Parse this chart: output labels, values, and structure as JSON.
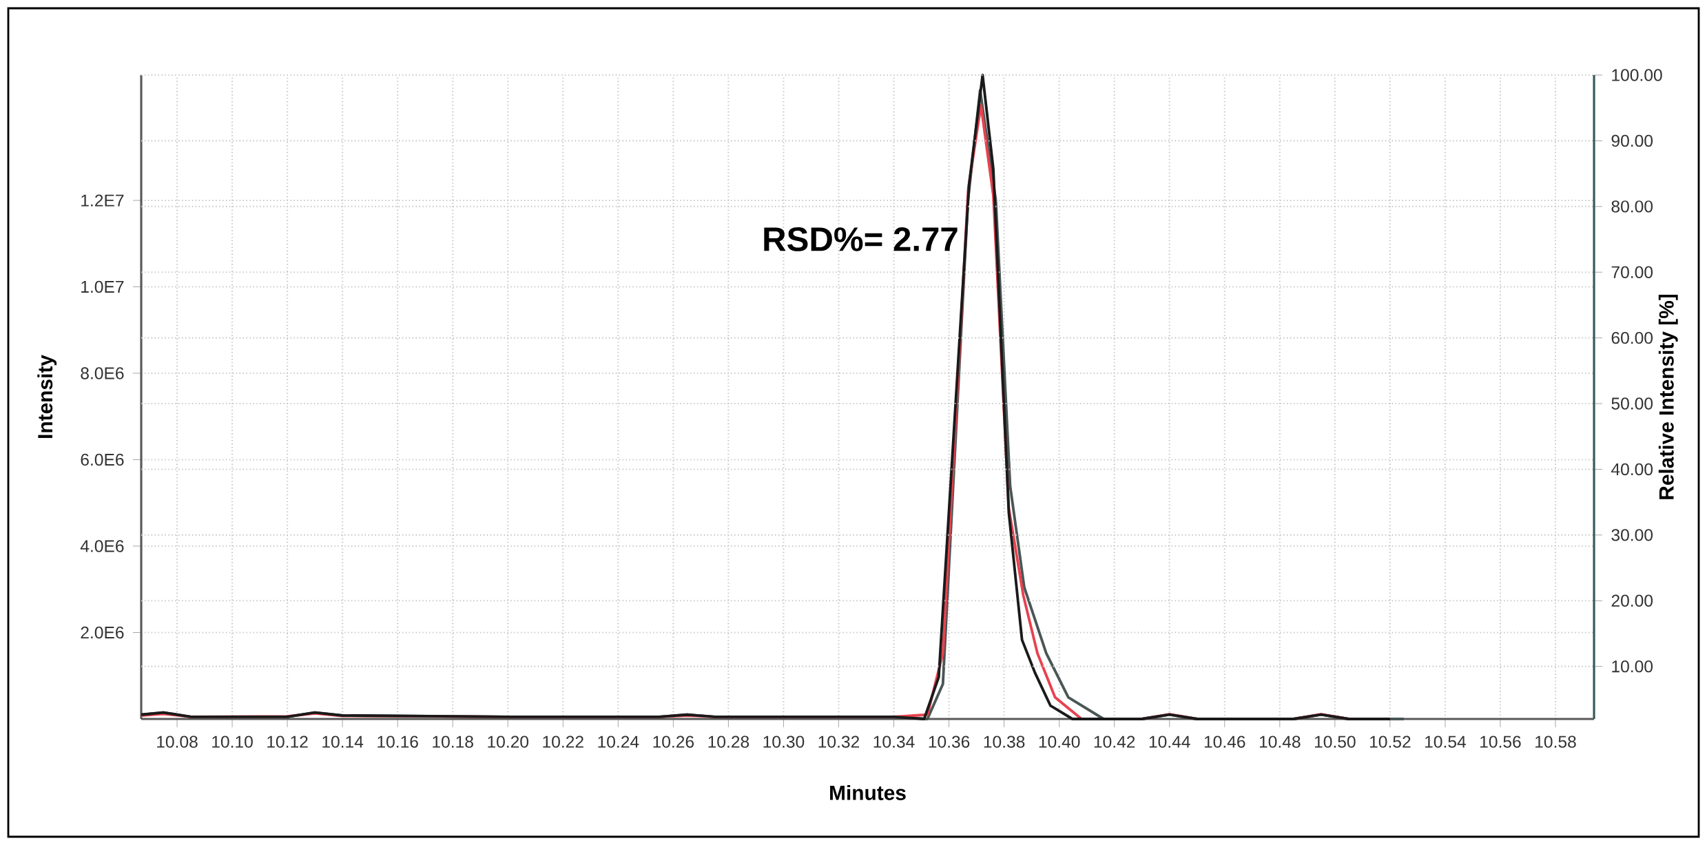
{
  "chart_data": {
    "type": "line",
    "xlabel": "Minutes",
    "ylabel": "Intensity",
    "y2label": "Relative Intensity [%]",
    "annotations": [
      "RSD%= 2.77"
    ],
    "grid": true,
    "xlim": [
      10.067,
      10.594
    ],
    "ylim": [
      0,
      14900000
    ],
    "y2lim": [
      2,
      100
    ],
    "xticks": [
      {
        "value": 10.08,
        "label": "10.08"
      },
      {
        "value": 10.1,
        "label": "10.10"
      },
      {
        "value": 10.12,
        "label": "10.12"
      },
      {
        "value": 10.14,
        "label": "10.14"
      },
      {
        "value": 10.16,
        "label": "10.16"
      },
      {
        "value": 10.18,
        "label": "10.18"
      },
      {
        "value": 10.2,
        "label": "10.20"
      },
      {
        "value": 10.22,
        "label": "10.22"
      },
      {
        "value": 10.24,
        "label": "10.24"
      },
      {
        "value": 10.26,
        "label": "10.26"
      },
      {
        "value": 10.28,
        "label": "10.28"
      },
      {
        "value": 10.3,
        "label": "10.30"
      },
      {
        "value": 10.32,
        "label": "10.32"
      },
      {
        "value": 10.34,
        "label": "10.34"
      },
      {
        "value": 10.36,
        "label": "10.36"
      },
      {
        "value": 10.38,
        "label": "10.38"
      },
      {
        "value": 10.4,
        "label": "10.40"
      },
      {
        "value": 10.42,
        "label": "10.42"
      },
      {
        "value": 10.44,
        "label": "10.44"
      },
      {
        "value": 10.46,
        "label": "10.46"
      },
      {
        "value": 10.48,
        "label": "10.48"
      },
      {
        "value": 10.5,
        "label": "10.50"
      },
      {
        "value": 10.52,
        "label": "10.52"
      },
      {
        "value": 10.54,
        "label": "10.54"
      },
      {
        "value": 10.56,
        "label": "10.56"
      },
      {
        "value": 10.58,
        "label": "10.58"
      }
    ],
    "yticks": [
      {
        "value": 2000000,
        "label": "2.0E6"
      },
      {
        "value": 4000000,
        "label": "4.0E6"
      },
      {
        "value": 6000000,
        "label": "6.0E6"
      },
      {
        "value": 8000000,
        "label": "8.0E6"
      },
      {
        "value": 10000000,
        "label": "1.0E7"
      },
      {
        "value": 12000000,
        "label": "1.2E7"
      }
    ],
    "y2ticks": [
      {
        "value": 10,
        "label": "10.00"
      },
      {
        "value": 20,
        "label": "20.00"
      },
      {
        "value": 30,
        "label": "30.00"
      },
      {
        "value": 40,
        "label": "40.00"
      },
      {
        "value": 50,
        "label": "50.00"
      },
      {
        "value": 60,
        "label": "60.00"
      },
      {
        "value": 70,
        "label": "70.00"
      },
      {
        "value": 80,
        "label": "80.00"
      },
      {
        "value": 90,
        "label": "90.00"
      },
      {
        "value": 100,
        "label": "100.00"
      }
    ],
    "series": [
      {
        "color": "#4a5656",
        "x": [
          10.067,
          10.075,
          10.085,
          10.12,
          10.13,
          10.14,
          10.2,
          10.255,
          10.265,
          10.275,
          10.34,
          10.3522,
          10.3578,
          10.3669,
          10.3713,
          10.377,
          10.3822,
          10.3873,
          10.3953,
          10.4033,
          10.4161,
          10.43,
          10.44,
          10.45,
          10.485,
          10.495,
          10.505,
          10.525
        ],
        "values": [
          100000,
          150000,
          50000,
          50000,
          150000,
          80000,
          50000,
          50000,
          100000,
          50000,
          50000,
          0,
          810000,
          12000000,
          14550000,
          12000000,
          5390000,
          3050000,
          1520000,
          500000,
          0,
          0,
          100000,
          0,
          0,
          100000,
          0,
          0
        ]
      },
      {
        "color": "#e8424f",
        "x": [
          10.067,
          10.075,
          10.085,
          10.12,
          10.13,
          10.14,
          10.2,
          10.255,
          10.265,
          10.275,
          10.34,
          10.3522,
          10.3578,
          10.367,
          10.3716,
          10.3761,
          10.3817,
          10.387,
          10.3921,
          10.3985,
          10.4081,
          10.43,
          10.44,
          10.45,
          10.485,
          10.495,
          10.505,
          10.52
        ],
        "values": [
          80000,
          120000,
          50000,
          60000,
          130000,
          70000,
          50000,
          50000,
          80000,
          50000,
          50000,
          100000,
          1520000,
          12260000,
          14200000,
          12110000,
          4880000,
          2850000,
          1520000,
          500000,
          0,
          0,
          110000,
          0,
          0,
          110000,
          0,
          0
        ]
      },
      {
        "color": "#1a1a1a",
        "x": [
          10.067,
          10.075,
          10.085,
          10.12,
          10.13,
          10.14,
          10.2,
          10.255,
          10.265,
          10.275,
          10.34,
          10.351,
          10.3563,
          10.3673,
          10.3722,
          10.3761,
          10.3817,
          10.3865,
          10.3912,
          10.3968,
          10.4048,
          10.43,
          10.44,
          10.45,
          10.485,
          10.495,
          10.505,
          10.52
        ],
        "values": [
          100000,
          150000,
          50000,
          50000,
          150000,
          80000,
          50000,
          50000,
          100000,
          50000,
          50000,
          0,
          970000,
          12370000,
          14900000,
          12720000,
          4780000,
          1830000,
          1070000,
          310000,
          0,
          0,
          100000,
          0,
          0,
          100000,
          0,
          0
        ]
      }
    ]
  }
}
